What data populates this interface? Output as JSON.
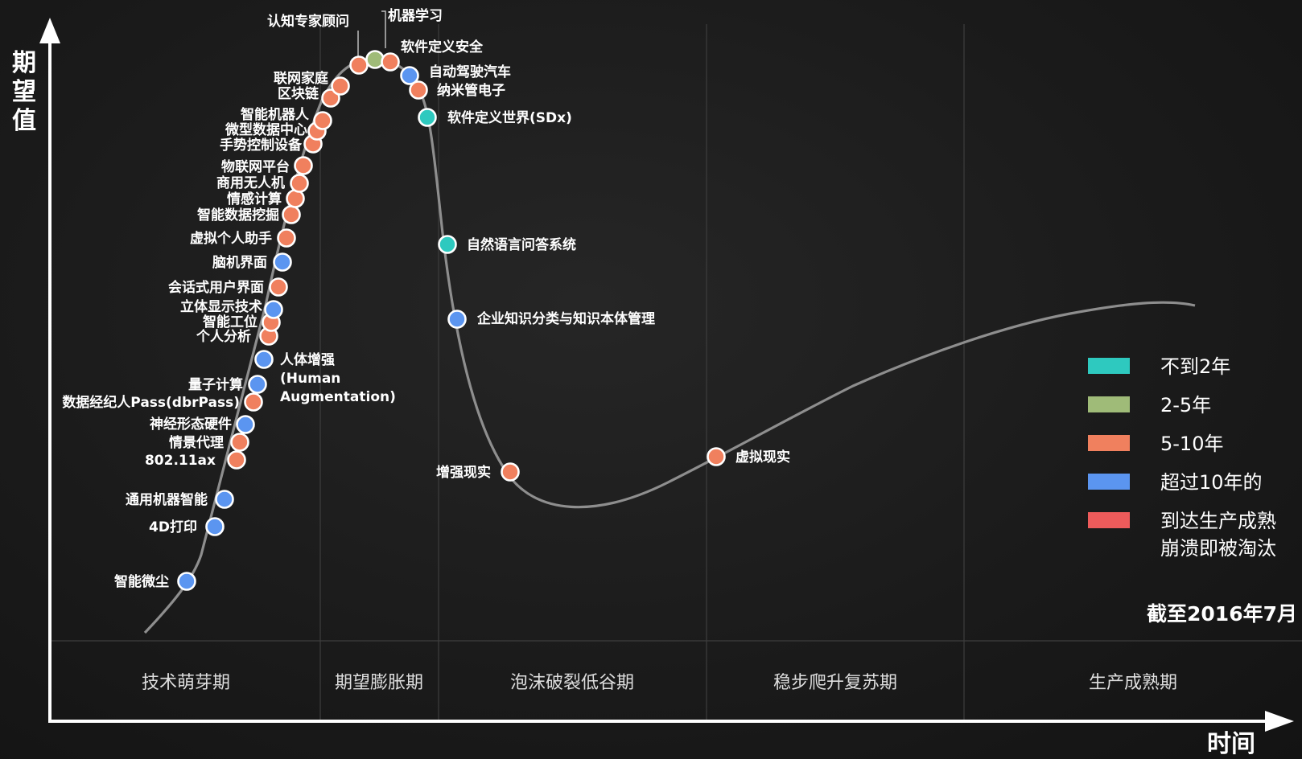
{
  "axis": {
    "y_title": "期望值",
    "x_title": "时间"
  },
  "as_of": "截至2016年7月",
  "colors": {
    "background": "#1b1b1b",
    "curve": "#8a8a8a",
    "axis": "#ffffff",
    "divider": "#444444"
  },
  "legend": [
    {
      "label": "不到2年",
      "color": "#2ec9bf"
    },
    {
      "label": "2-5年",
      "color": "#9fbb78"
    },
    {
      "label": "5-10年",
      "color": "#f0805e"
    },
    {
      "label": "超过10年的",
      "color": "#5b95f0"
    },
    {
      "label": "到达生产成熟\n崩溃即被淘汰",
      "color": "#ee5b5b"
    }
  ],
  "phases": [
    "技术萌芽期",
    "期望膨胀期",
    "泡沫破裂低谷期",
    "稳步爬升复苏期",
    "生产成熟期"
  ],
  "technologies": [
    {
      "label": "智能微尘",
      "category": "超过10年的"
    },
    {
      "label": "4D打印",
      "category": "超过10年的"
    },
    {
      "label": "通用机器智能",
      "category": "超过10年的"
    },
    {
      "label": "802.11ax",
      "category": "5-10年"
    },
    {
      "label": "情景代理",
      "category": "5-10年"
    },
    {
      "label": "神经形态硬件",
      "category": "超过10年的"
    },
    {
      "label": "数据经纪人Pass(dbrPass)",
      "category": "5-10年"
    },
    {
      "label": "量子计算",
      "category": "超过10年的"
    },
    {
      "label": "人体增强\n(Human\nAugmentation)",
      "category": "超过10年的"
    },
    {
      "label": "个人分析",
      "category": "5-10年"
    },
    {
      "label": "智能工位",
      "category": "5-10年"
    },
    {
      "label": "立体显示技术",
      "category": "超过10年的"
    },
    {
      "label": "会话式用户界面",
      "category": "5-10年"
    },
    {
      "label": "脑机界面",
      "category": "超过10年的"
    },
    {
      "label": "虚拟个人助手",
      "category": "5-10年"
    },
    {
      "label": "智能数据挖掘",
      "category": "5-10年"
    },
    {
      "label": "情感计算",
      "category": "5-10年"
    },
    {
      "label": "商用无人机",
      "category": "5-10年"
    },
    {
      "label": "物联网平台",
      "category": "5-10年"
    },
    {
      "label": "手势控制设备",
      "category": "5-10年"
    },
    {
      "label": "微型数据中心",
      "category": "5-10年"
    },
    {
      "label": "智能机器人",
      "category": "5-10年"
    },
    {
      "label": "区块链",
      "category": "5-10年"
    },
    {
      "label": "联网家庭",
      "category": "5-10年"
    },
    {
      "label": "认知专家顾问",
      "category": "5-10年"
    },
    {
      "label": "机器学习",
      "category": "2-5年"
    },
    {
      "label": "软件定义安全",
      "category": "5-10年"
    },
    {
      "label": "自动驾驶汽车",
      "category": "超过10年的"
    },
    {
      "label": "纳米管电子",
      "category": "5-10年"
    },
    {
      "label": "软件定义世界(SDx)",
      "category": "不到2年"
    },
    {
      "label": "自然语言问答系统",
      "category": "不到2年"
    },
    {
      "label": "企业知识分类与知识本体管理",
      "category": "超过10年的"
    },
    {
      "label": "增强现实",
      "category": "5-10年"
    },
    {
      "label": "虚拟现实",
      "category": "5-10年"
    }
  ]
}
